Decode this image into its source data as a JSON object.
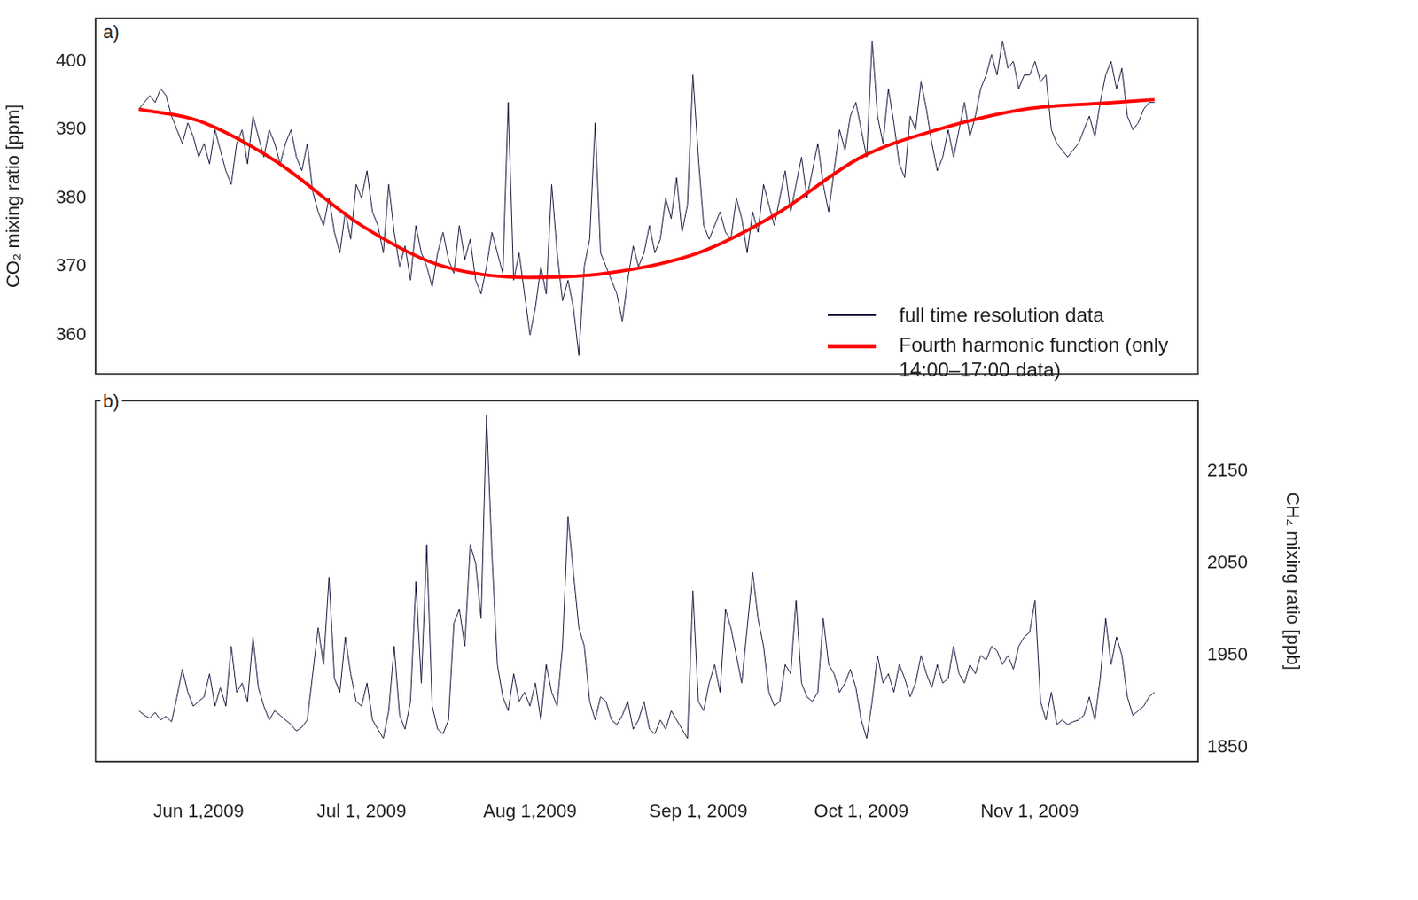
{
  "chart_data": [
    {
      "type": "line",
      "panel": "a)",
      "y_label": "CO₂ mixing ratio [ppm]",
      "grid": false,
      "tick_labels": "y",
      "legend": "bottom right",
      "xlim": [
        "2009-05-13",
        "2009-12-02"
      ],
      "xticks": [
        {
          "value": "2009-06-01",
          "label": "Jun 1,2009"
        },
        {
          "value": "2009-07-01",
          "label": "Jul 1, 2009"
        },
        {
          "value": "2009-08-01",
          "label": "Aug 1,2009"
        },
        {
          "value": "2009-09-01",
          "label": "Sep 1, 2009"
        },
        {
          "value": "2009-10-01",
          "label": "Oct 1, 2009"
        },
        {
          "value": "2009-11-01",
          "label": "Nov 1, 2009"
        }
      ],
      "ylim": [
        354.3,
        406.3
      ],
      "yticks": [
        360,
        370,
        380,
        390,
        400
      ],
      "x": [
        "2009-05-21",
        "2009-05-22",
        "2009-05-23",
        "2009-05-24",
        "2009-05-25",
        "2009-05-26",
        "2009-05-27",
        "2009-05-28",
        "2009-05-29",
        "2009-05-30",
        "2009-05-31",
        "2009-06-01",
        "2009-06-02",
        "2009-06-03",
        "2009-06-04",
        "2009-06-05",
        "2009-06-06",
        "2009-06-07",
        "2009-06-08",
        "2009-06-09",
        "2009-06-10",
        "2009-06-11",
        "2009-06-12",
        "2009-06-13",
        "2009-06-14",
        "2009-06-15",
        "2009-06-16",
        "2009-06-17",
        "2009-06-18",
        "2009-06-19",
        "2009-06-20",
        "2009-06-21",
        "2009-06-22",
        "2009-06-23",
        "2009-06-24",
        "2009-06-25",
        "2009-06-26",
        "2009-06-27",
        "2009-06-28",
        "2009-06-29",
        "2009-06-30",
        "2009-07-01",
        "2009-07-02",
        "2009-07-03",
        "2009-07-04",
        "2009-07-05",
        "2009-07-06",
        "2009-07-07",
        "2009-07-08",
        "2009-07-09",
        "2009-07-10",
        "2009-07-11",
        "2009-07-12",
        "2009-07-13",
        "2009-07-14",
        "2009-07-15",
        "2009-07-16",
        "2009-07-17",
        "2009-07-18",
        "2009-07-19",
        "2009-07-20",
        "2009-07-21",
        "2009-07-22",
        "2009-07-23",
        "2009-07-24",
        "2009-07-25",
        "2009-07-26",
        "2009-07-27",
        "2009-07-28",
        "2009-07-29",
        "2009-07-30",
        "2009-07-31",
        "2009-08-01",
        "2009-08-02",
        "2009-08-03",
        "2009-08-04",
        "2009-08-05",
        "2009-08-06",
        "2009-08-07",
        "2009-08-08",
        "2009-08-09",
        "2009-08-10",
        "2009-08-11",
        "2009-08-12",
        "2009-08-13",
        "2009-08-14",
        "2009-08-15",
        "2009-08-16",
        "2009-08-17",
        "2009-08-18",
        "2009-08-19",
        "2009-08-20",
        "2009-08-21",
        "2009-08-22",
        "2009-08-23",
        "2009-08-24",
        "2009-08-25",
        "2009-08-26",
        "2009-08-27",
        "2009-08-28",
        "2009-08-29",
        "2009-08-30",
        "2009-08-31",
        "2009-09-01",
        "2009-09-02",
        "2009-09-03",
        "2009-09-04",
        "2009-09-05",
        "2009-09-06",
        "2009-09-07",
        "2009-09-08",
        "2009-09-09",
        "2009-09-10",
        "2009-09-11",
        "2009-09-12",
        "2009-09-13",
        "2009-09-14",
        "2009-09-15",
        "2009-09-16",
        "2009-09-17",
        "2009-09-18",
        "2009-09-19",
        "2009-09-20",
        "2009-09-21",
        "2009-09-22",
        "2009-09-23",
        "2009-09-24",
        "2009-09-25",
        "2009-09-26",
        "2009-09-27",
        "2009-09-28",
        "2009-09-29",
        "2009-09-30",
        "2009-10-01",
        "2009-10-02",
        "2009-10-03",
        "2009-10-04",
        "2009-10-05",
        "2009-10-06",
        "2009-10-07",
        "2009-10-08",
        "2009-10-09",
        "2009-10-10",
        "2009-10-11",
        "2009-10-12",
        "2009-10-13",
        "2009-10-14",
        "2009-10-15",
        "2009-10-16",
        "2009-10-17",
        "2009-10-18",
        "2009-10-19",
        "2009-10-20",
        "2009-10-21",
        "2009-10-22",
        "2009-10-23",
        "2009-10-24",
        "2009-10-25",
        "2009-10-26",
        "2009-10-27",
        "2009-10-28",
        "2009-10-29",
        "2009-10-30",
        "2009-10-31",
        "2009-11-01",
        "2009-11-02",
        "2009-11-03",
        "2009-11-04",
        "2009-11-05",
        "2009-11-06",
        "2009-11-07",
        "2009-11-08",
        "2009-11-09",
        "2009-11-10",
        "2009-11-11",
        "2009-11-12",
        "2009-11-13",
        "2009-11-14",
        "2009-11-15",
        "2009-11-16",
        "2009-11-17",
        "2009-11-18",
        "2009-11-19",
        "2009-11-20",
        "2009-11-21",
        "2009-11-22",
        "2009-11-23",
        "2009-11-24"
      ],
      "series": [
        {
          "name": "full time resolution data",
          "color": "#14143c",
          "values": [
            393,
            394,
            395,
            394,
            396,
            395,
            392,
            390,
            388,
            391,
            389,
            386,
            388,
            385,
            390,
            387,
            384,
            382,
            388,
            390,
            385,
            392,
            389,
            386,
            390,
            388,
            385,
            388,
            390,
            386,
            384,
            388,
            381,
            378,
            376,
            380,
            375,
            372,
            378,
            374,
            382,
            380,
            384,
            378,
            376,
            372,
            382,
            375,
            370,
            373,
            368,
            376,
            372,
            370,
            367,
            372,
            375,
            371,
            369,
            376,
            371,
            374,
            368,
            366,
            370,
            375,
            372,
            369,
            394,
            368,
            372,
            366,
            360,
            364,
            370,
            366,
            382,
            372,
            365,
            368,
            364,
            357,
            370,
            374,
            391,
            372,
            370,
            368,
            366,
            362,
            368,
            373,
            370,
            372,
            376,
            372,
            374,
            380,
            377,
            383,
            375,
            379,
            398,
            386,
            376,
            374,
            376,
            378,
            375,
            374,
            380,
            377,
            372,
            378,
            375,
            382,
            379,
            376,
            380,
            384,
            378,
            382,
            386,
            380,
            384,
            388,
            382,
            378,
            384,
            390,
            387,
            392,
            394,
            390,
            386,
            403,
            392,
            388,
            396,
            391,
            385,
            383,
            392,
            390,
            397,
            393,
            388,
            384,
            386,
            390,
            386,
            390,
            394,
            389,
            392,
            396,
            398,
            401,
            398,
            403,
            399,
            400,
            396,
            398,
            398,
            400,
            397,
            398,
            390,
            388,
            387,
            386,
            387,
            388,
            390,
            392,
            389,
            394,
            398,
            400,
            396,
            399,
            392,
            390,
            391,
            393,
            394,
            394
          ]
        },
        {
          "name": "Fourth harmonic function (only 14:00–17:00 data)",
          "color": "#ff0000",
          "x": [
            "2009-05-21",
            "2009-06-01",
            "2009-06-15",
            "2009-07-01",
            "2009-07-15",
            "2009-08-01",
            "2009-08-15",
            "2009-09-01",
            "2009-09-15",
            "2009-10-01",
            "2009-10-15",
            "2009-11-01",
            "2009-11-15",
            "2009-11-24"
          ],
          "values": [
            393,
            391.3,
            385.5,
            376,
            370.3,
            368.4,
            369,
            372,
            377.5,
            386,
            390,
            393.1,
            393.9,
            394.4
          ]
        }
      ]
    },
    {
      "type": "line",
      "panel": "b)",
      "y2_label": "CH₄ mixing ratio [ppb]",
      "grid": false,
      "xlim": [
        "2009-05-13",
        "2009-12-02"
      ],
      "xticks": [
        {
          "value": "2009-06-01",
          "label": "Jun 1,2009"
        },
        {
          "value": "2009-07-01",
          "label": "Jul 1, 2009"
        },
        {
          "value": "2009-08-01",
          "label": "Aug 1,2009"
        },
        {
          "value": "2009-09-01",
          "label": "Sep 1, 2009"
        },
        {
          "value": "2009-10-01",
          "label": "Oct 1, 2009"
        },
        {
          "value": "2009-11-01",
          "label": "Nov 1, 2009"
        }
      ],
      "y2lim": [
        1835,
        2226
      ],
      "y2ticks": [
        1850,
        1950,
        2050,
        2150
      ],
      "x": [
        "2009-05-21",
        "2009-05-22",
        "2009-05-23",
        "2009-05-24",
        "2009-05-25",
        "2009-05-26",
        "2009-05-27",
        "2009-05-28",
        "2009-05-29",
        "2009-05-30",
        "2009-05-31",
        "2009-06-01",
        "2009-06-02",
        "2009-06-03",
        "2009-06-04",
        "2009-06-05",
        "2009-06-06",
        "2009-06-07",
        "2009-06-08",
        "2009-06-09",
        "2009-06-10",
        "2009-06-11",
        "2009-06-12",
        "2009-06-13",
        "2009-06-14",
        "2009-06-15",
        "2009-06-16",
        "2009-06-17",
        "2009-06-18",
        "2009-06-19",
        "2009-06-20",
        "2009-06-21",
        "2009-06-22",
        "2009-06-23",
        "2009-06-24",
        "2009-06-25",
        "2009-06-26",
        "2009-06-27",
        "2009-06-28",
        "2009-06-29",
        "2009-06-30",
        "2009-07-01",
        "2009-07-02",
        "2009-07-03",
        "2009-07-04",
        "2009-07-05",
        "2009-07-06",
        "2009-07-07",
        "2009-07-08",
        "2009-07-09",
        "2009-07-10",
        "2009-07-11",
        "2009-07-12",
        "2009-07-13",
        "2009-07-14",
        "2009-07-15",
        "2009-07-16",
        "2009-07-17",
        "2009-07-18",
        "2009-07-19",
        "2009-07-20",
        "2009-07-21",
        "2009-07-22",
        "2009-07-23",
        "2009-07-24",
        "2009-07-25",
        "2009-07-26",
        "2009-07-27",
        "2009-07-28",
        "2009-07-29",
        "2009-07-30",
        "2009-07-31",
        "2009-08-01",
        "2009-08-02",
        "2009-08-03",
        "2009-08-04",
        "2009-08-05",
        "2009-08-06",
        "2009-08-07",
        "2009-08-08",
        "2009-08-09",
        "2009-08-10",
        "2009-08-11",
        "2009-08-12",
        "2009-08-13",
        "2009-08-14",
        "2009-08-15",
        "2009-08-16",
        "2009-08-17",
        "2009-08-18",
        "2009-08-19",
        "2009-08-20",
        "2009-08-21",
        "2009-08-22",
        "2009-08-23",
        "2009-08-24",
        "2009-08-25",
        "2009-08-26",
        "2009-08-27",
        "2009-08-28",
        "2009-08-29",
        "2009-08-30",
        "2009-08-31",
        "2009-09-01",
        "2009-09-02",
        "2009-09-03",
        "2009-09-04",
        "2009-09-05",
        "2009-09-06",
        "2009-09-07",
        "2009-09-08",
        "2009-09-09",
        "2009-09-10",
        "2009-09-11",
        "2009-09-12",
        "2009-09-13",
        "2009-09-14",
        "2009-09-15",
        "2009-09-16",
        "2009-09-17",
        "2009-09-18",
        "2009-09-19",
        "2009-09-20",
        "2009-09-21",
        "2009-09-22",
        "2009-09-23",
        "2009-09-24",
        "2009-09-25",
        "2009-09-26",
        "2009-09-27",
        "2009-09-28",
        "2009-09-29",
        "2009-09-30",
        "2009-10-01",
        "2009-10-02",
        "2009-10-03",
        "2009-10-04",
        "2009-10-05",
        "2009-10-06",
        "2009-10-07",
        "2009-10-08",
        "2009-10-09",
        "2009-10-10",
        "2009-10-11",
        "2009-10-12",
        "2009-10-13",
        "2009-10-14",
        "2009-10-15",
        "2009-10-16",
        "2009-10-17",
        "2009-10-18",
        "2009-10-19",
        "2009-10-20",
        "2009-10-21",
        "2009-10-22",
        "2009-10-23",
        "2009-10-24",
        "2009-10-25",
        "2009-10-26",
        "2009-10-27",
        "2009-10-28",
        "2009-10-29",
        "2009-10-30",
        "2009-10-31",
        "2009-11-01",
        "2009-11-02",
        "2009-11-03",
        "2009-11-04",
        "2009-11-05",
        "2009-11-06",
        "2009-11-07",
        "2009-11-08",
        "2009-11-09",
        "2009-11-10",
        "2009-11-11",
        "2009-11-12",
        "2009-11-13",
        "2009-11-14",
        "2009-11-15",
        "2009-11-16",
        "2009-11-17",
        "2009-11-18",
        "2009-11-19",
        "2009-11-20",
        "2009-11-21",
        "2009-11-22",
        "2009-11-23",
        "2009-11-24"
      ],
      "series": [
        {
          "color": "#14143c",
          "axis": "y2",
          "values": [
            1890,
            1885,
            1882,
            1888,
            1880,
            1884,
            1878,
            1905,
            1935,
            1910,
            1895,
            1900,
            1905,
            1930,
            1895,
            1915,
            1895,
            1960,
            1910,
            1920,
            1900,
            1970,
            1915,
            1895,
            1880,
            1890,
            1885,
            1880,
            1875,
            1868,
            1872,
            1880,
            1930,
            1980,
            1940,
            2035,
            1925,
            1910,
            1970,
            1930,
            1900,
            1895,
            1920,
            1880,
            1870,
            1860,
            1890,
            1960,
            1885,
            1870,
            1900,
            2030,
            1920,
            2070,
            1895,
            1870,
            1865,
            1880,
            1985,
            2000,
            1960,
            2070,
            2050,
            1990,
            2210,
            2060,
            1940,
            1905,
            1890,
            1930,
            1900,
            1910,
            1895,
            1920,
            1880,
            1940,
            1910,
            1895,
            1960,
            2100,
            2040,
            1980,
            1960,
            1900,
            1880,
            1905,
            1900,
            1880,
            1875,
            1885,
            1900,
            1870,
            1880,
            1900,
            1870,
            1865,
            1880,
            1870,
            1890,
            1880,
            1870,
            1860,
            2020,
            1900,
            1890,
            1920,
            1940,
            1910,
            2000,
            1980,
            1950,
            1920,
            1980,
            2040,
            1990,
            1960,
            1910,
            1895,
            1900,
            1940,
            1930,
            2010,
            1920,
            1905,
            1900,
            1910,
            1990,
            1940,
            1930,
            1910,
            1920,
            1935,
            1915,
            1880,
            1860,
            1900,
            1950,
            1920,
            1930,
            1910,
            1940,
            1925,
            1905,
            1920,
            1950,
            1930,
            1915,
            1940,
            1920,
            1925,
            1960,
            1930,
            1920,
            1940,
            1930,
            1950,
            1945,
            1960,
            1955,
            1940,
            1950,
            1935,
            1960,
            1970,
            1975,
            2010,
            1900,
            1880,
            1910,
            1875,
            1880,
            1875,
            1878,
            1880,
            1885,
            1905,
            1880,
            1925,
            1990,
            1940,
            1970,
            1950,
            1905,
            1885,
            1890,
            1895,
            1905,
            1910
          ]
        }
      ]
    }
  ]
}
